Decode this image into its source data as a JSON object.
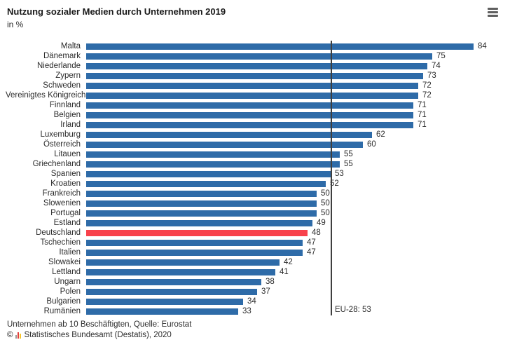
{
  "header": {
    "title": "Nutzung sozialer Medien durch Unternehmen 2019",
    "subtitle": "in %",
    "menu_icon": "hamburger-menu"
  },
  "chart_data": {
    "type": "bar",
    "orientation": "horizontal",
    "title": "Nutzung sozialer Medien durch Unternehmen 2019",
    "unit": "%",
    "xlim": [
      0,
      90
    ],
    "grid": false,
    "categories": [
      "Malta",
      "Dänemark",
      "Niederlande",
      "Zypern",
      "Schweden",
      "Vereinigtes Königreich",
      "Finnland",
      "Belgien",
      "Irland",
      "Luxemburg",
      "Österreich",
      "Litauen",
      "Griechenland",
      "Spanien",
      "Kroatien",
      "Frankreich",
      "Slowenien",
      "Portugal",
      "Estland",
      "Deutschland",
      "Tschechien",
      "Italien",
      "Slowakei",
      "Lettland",
      "Ungarn",
      "Polen",
      "Bulgarien",
      "Rumänien"
    ],
    "values": [
      84,
      75,
      74,
      73,
      72,
      72,
      71,
      71,
      71,
      62,
      60,
      55,
      55,
      53,
      52,
      50,
      50,
      50,
      49,
      48,
      47,
      47,
      42,
      41,
      38,
      37,
      34,
      33
    ],
    "highlight_category": "Deutschland",
    "bar_color": "#2e6ba8",
    "highlight_color": "#f8414b",
    "reference_line": {
      "label": "EU-28: 53",
      "value": 53,
      "color": "#3f3f3f"
    }
  },
  "footer": {
    "note": "Unternehmen ab 10 Beschäftigten, Quelle: Eurostat",
    "copyright_prefix": "©",
    "copyright_text": "Statistisches Bundesamt (Destatis), 2020"
  }
}
